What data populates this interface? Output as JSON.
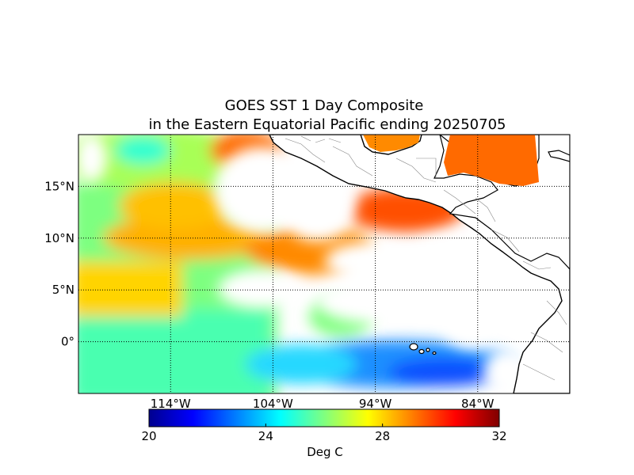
{
  "title": {
    "line1": "GOES SST 1 Day Composite",
    "line2": "in the Eastern Equatorial Pacific ending 20250705"
  },
  "map": {
    "lon_range": [
      -123,
      -75
    ],
    "lat_range": [
      -5,
      20
    ],
    "lat_ticks": [
      {
        "value": 15,
        "label": "15°N"
      },
      {
        "value": 10,
        "label": "10°N"
      },
      {
        "value": 5,
        "label": "5°N"
      },
      {
        "value": 0,
        "label": "0°"
      }
    ],
    "lon_ticks": [
      {
        "value": -114,
        "label": "114°W"
      },
      {
        "value": -104,
        "label": "104°W"
      },
      {
        "value": -94,
        "label": "94°W"
      },
      {
        "value": -84,
        "label": "84°W"
      }
    ],
    "gridlines": "dotted",
    "land_color": "#ffffff",
    "coastline_color": "#000000"
  },
  "colorbar": {
    "label": "Deg C",
    "min": 20,
    "max": 32,
    "ticks": [
      {
        "value": 20,
        "label": "20"
      },
      {
        "value": 24,
        "label": "24"
      },
      {
        "value": 28,
        "label": "28"
      },
      {
        "value": 32,
        "label": "32"
      }
    ],
    "colormap": [
      "#00008f",
      "#0000ff",
      "#0080ff",
      "#00ffff",
      "#80ff80",
      "#ffff00",
      "#ff8000",
      "#ff0000",
      "#800000"
    ]
  }
}
